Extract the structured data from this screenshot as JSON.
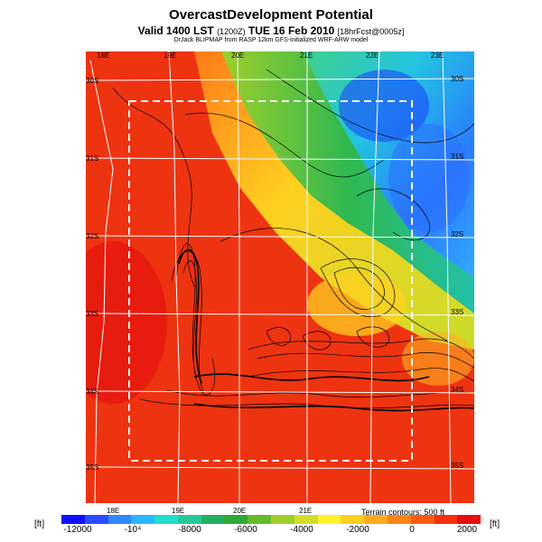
{
  "title": "OvercastDevelopment Potential",
  "valid_line": {
    "main": "Valid 1400 LST",
    "init": "(1200Z)",
    "date": "TUE 16 Feb 2010",
    "forecast": "[18hrFcst@0005z]"
  },
  "subtitle": "DrJack BLIPMAP from RASP 12km GFS-initialized WRF-ARW model",
  "terrain_note": "Terrain contours: 500 ft",
  "units": {
    "left": "[ft]",
    "right": "[ft]"
  },
  "colorbar": {
    "tick_labels": [
      "-12000",
      "-10⁴",
      "-8000",
      "-6000",
      "-4000",
      "-2000",
      "0",
      "2000"
    ],
    "colors": [
      "#1010ff",
      "#2a4cff",
      "#2f88ff",
      "#29b8ff",
      "#22dccc",
      "#26c89a",
      "#20b060",
      "#2ea838",
      "#62bc2a",
      "#9fce2a",
      "#d4de2a",
      "#fff22a",
      "#ffd020",
      "#ffaa20",
      "#ff8418",
      "#ff5a12",
      "#f63010",
      "#e60e0e"
    ]
  },
  "map": {
    "lon_labels_top": [
      "18E",
      "19E",
      "20E",
      "21E",
      "22E",
      "23E"
    ],
    "lon_labels_bottom": [
      "18E",
      "19E",
      "20E",
      "21E"
    ],
    "lat_labels_left": [
      "30S",
      "31S",
      "32S",
      "33S",
      "34S",
      "35S"
    ],
    "lat_labels_right": [
      "30S",
      "31S",
      "32S",
      "33S",
      "34S",
      "35S"
    ],
    "zones": [
      {
        "name": "cool-northeast",
        "color": "#1c9cff"
      },
      {
        "name": "mid-north",
        "color": "#2bbf7a"
      },
      {
        "name": "transition",
        "color": "#ffd020"
      },
      {
        "name": "warm-southwest",
        "color": "#ee3311"
      }
    ]
  }
}
